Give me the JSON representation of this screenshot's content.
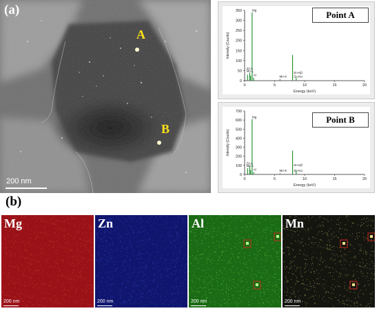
{
  "panel_a_label": "(a)",
  "panel_b_label": "(b)",
  "sem": {
    "point_a": "A",
    "point_b": "B",
    "scale": "200 nm"
  },
  "chart_data": [
    {
      "type": "bar",
      "title": "Point A",
      "xlabel": "Energy (keV)",
      "ylabel": "Intensity (Counts)",
      "xlim": [
        0,
        20
      ],
      "ylim": [
        0,
        350
      ],
      "xticks": [
        "0",
        "5",
        "10",
        "15",
        "20"
      ],
      "yticks": [
        "0",
        "50",
        "100",
        "150",
        "200",
        "250",
        "300",
        "350"
      ],
      "peaks": [
        {
          "x": 0.5,
          "y": 30
        },
        {
          "x": 0.85,
          "y": 40
        },
        {
          "x": 1.0,
          "y": 25
        },
        {
          "x": 1.25,
          "y": 340
        },
        {
          "x": 1.5,
          "y": 15
        },
        {
          "x": 5.9,
          "y": 8
        },
        {
          "x": 8.0,
          "y": 128
        },
        {
          "x": 8.6,
          "y": 15
        }
      ],
      "peak_labels": [
        {
          "text": "Mg",
          "x": 1.25,
          "y": 340
        },
        {
          "text": "Zn-L",
          "x": 0.3,
          "y": 50
        },
        {
          "text": "Mn-L",
          "x": 0.3,
          "y": 38
        },
        {
          "text": "Al",
          "x": 1.45,
          "y": 18
        },
        {
          "text": "Mn-K",
          "x": 5.8,
          "y": 11
        },
        {
          "text": "Zn-Kβ",
          "x": 8.2,
          "y": 30
        },
        {
          "text": "Zn-Kα",
          "x": 8.2,
          "y": 11
        }
      ]
    },
    {
      "type": "bar",
      "title": "Point B",
      "xlabel": "Energy (keV)",
      "ylabel": "Intensity (Counts)",
      "xlim": [
        0,
        20
      ],
      "ylim": [
        0,
        700
      ],
      "xticks": [
        "0",
        "5",
        "10",
        "15",
        "20"
      ],
      "yticks": [
        "0",
        "100",
        "200",
        "300",
        "400",
        "500",
        "600",
        "700"
      ],
      "peaks": [
        {
          "x": 0.5,
          "y": 70
        },
        {
          "x": 0.85,
          "y": 90
        },
        {
          "x": 1.0,
          "y": 50
        },
        {
          "x": 1.25,
          "y": 610
        },
        {
          "x": 1.5,
          "y": 25
        },
        {
          "x": 5.9,
          "y": 12
        },
        {
          "x": 8.0,
          "y": 262
        },
        {
          "x": 8.6,
          "y": 40
        }
      ],
      "peak_labels": [
        {
          "text": "Mg",
          "x": 1.25,
          "y": 610
        },
        {
          "text": "Zn-L",
          "x": 0.3,
          "y": 100
        },
        {
          "text": "Mn-L",
          "x": 0.3,
          "y": 72
        },
        {
          "text": "Al",
          "x": 1.45,
          "y": 32
        },
        {
          "text": "Mn-K",
          "x": 5.8,
          "y": 18
        },
        {
          "text": "Zn-Kβ",
          "x": 8.2,
          "y": 80
        },
        {
          "text": "Zn-Kα",
          "x": 8.2,
          "y": 18
        }
      ]
    }
  ],
  "maps": [
    {
      "label": "Mg",
      "scale": "200 nm",
      "color": "#9a1218",
      "noise": "#d8402a"
    },
    {
      "label": "Zn",
      "scale": "200 nm",
      "color": "#10166e",
      "noise": "#3a4ad4"
    },
    {
      "label": "Al",
      "scale": "200 nm",
      "color": "#1b6a15",
      "noise": "#5fd846"
    },
    {
      "label": "Mn",
      "scale": "200 nm",
      "color": "#151510",
      "noise": "#c8c86a"
    }
  ]
}
